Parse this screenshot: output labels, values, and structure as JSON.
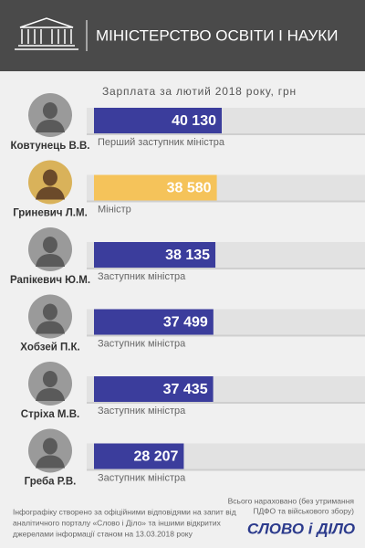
{
  "chart_data": {
    "type": "bar",
    "title": "МІНІСТЕРСТВО ОСВІТИ І НАУКИ",
    "subtitle": "Зарплата за лютий 2018 року, грн",
    "categories": [
      "Ковтунець В.В.",
      "Гриневич Л.М.",
      "Рапікевич Ю.М.",
      "Хобзей П.К.",
      "Стріха М.В.",
      "Греба Р.В."
    ],
    "roles": [
      "Перший заступник міністра",
      "Міністр",
      "Заступник міністра",
      "Заступник міністра",
      "Заступник міністра",
      "Заступник міністра"
    ],
    "values": [
      40130,
      38580,
      38135,
      37499,
      37435,
      28207
    ],
    "value_labels": [
      "40 130",
      "38 580",
      "38 135",
      "37 499",
      "37 435",
      "28 207"
    ],
    "colors": [
      "#3b3d9c",
      "#f5c35a",
      "#3b3d9c",
      "#3b3d9c",
      "#3b3d9c",
      "#3b3d9c"
    ],
    "note": [
      "Інфографіку створено за офіційними відповідями на запит від",
      "аналітичного  порталу «Слово і Діло» та іншими відкритих",
      "джерелами інформації станом на 13.03.2018 року"
    ],
    "total_note": [
      "Всього нараховано (без утримання",
      "ПДФО та військового збору)"
    ],
    "logo": "СЛОВО і ДІЛО"
  }
}
